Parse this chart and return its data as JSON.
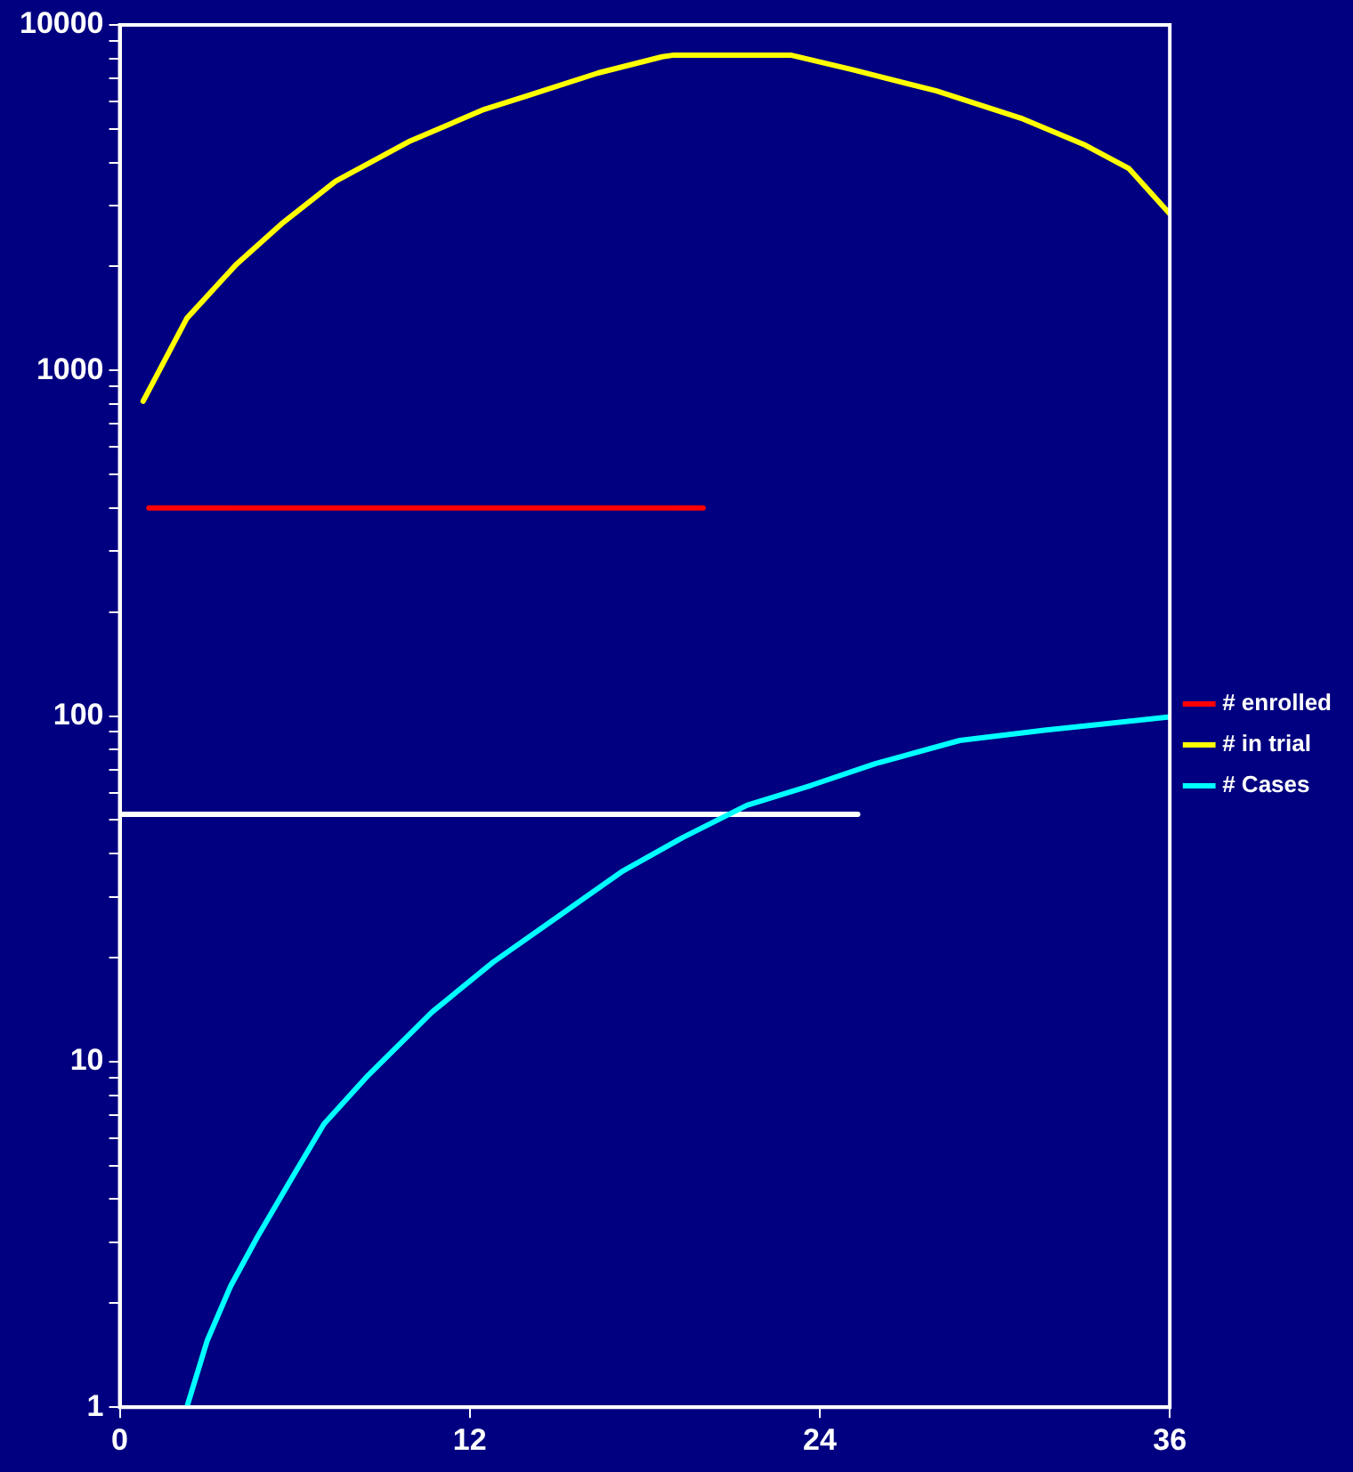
{
  "chart_data": {
    "type": "line",
    "log": "y",
    "legend": "right",
    "grid": false,
    "marker": "none",
    "line_style": "solid",
    "xlim": [
      0,
      36
    ],
    "xticks": [
      0,
      12,
      24,
      36
    ],
    "ylim": [
      1,
      10000
    ],
    "yticks": [
      1,
      {
        "value": 2,
        "label": null
      },
      {
        "value": 3,
        "label": null
      },
      {
        "value": 4,
        "label": null
      },
      {
        "value": 5,
        "label": null
      },
      {
        "value": 6,
        "label": null
      },
      {
        "value": 7,
        "label": null
      },
      {
        "value": 8,
        "label": null
      },
      {
        "value": 9,
        "label": null
      },
      10,
      {
        "value": 20,
        "label": null
      },
      {
        "value": 30,
        "label": null
      },
      {
        "value": 40,
        "label": null
      },
      {
        "value": 50,
        "label": null
      },
      {
        "value": 60,
        "label": null
      },
      {
        "value": 70,
        "label": null
      },
      {
        "value": 80,
        "label": null
      },
      {
        "value": 90,
        "label": null
      },
      100,
      {
        "value": 200,
        "label": null
      },
      {
        "value": 300,
        "label": null
      },
      {
        "value": 400,
        "label": null
      },
      {
        "value": 500,
        "label": null
      },
      {
        "value": 600,
        "label": null
      },
      {
        "value": 700,
        "label": null
      },
      {
        "value": 800,
        "label": null
      },
      {
        "value": 900,
        "label": null
      },
      1000,
      {
        "value": 2000,
        "label": null
      },
      {
        "value": 3000,
        "label": null
      },
      {
        "value": 4000,
        "label": null
      },
      {
        "value": 5000,
        "label": null
      },
      {
        "value": 6000,
        "label": null
      },
      {
        "value": 7000,
        "label": null
      },
      {
        "value": 8000,
        "label": null
      },
      {
        "value": 9000,
        "label": null
      },
      10000
    ],
    "series": [
      {
        "name": "# enrolled",
        "color": "#ff0000",
        "x": [
          1,
          20
        ],
        "values": [
          400,
          400
        ]
      },
      {
        "name": "# in trial",
        "color": "#ffff00",
        "x": [
          0.8,
          2.3,
          4,
          5.6,
          7.4,
          9.9,
          12.5,
          13.9,
          16.4,
          18.6,
          19,
          23,
          25.1,
          28,
          30.9,
          33.1,
          34.6,
          36
        ],
        "values": [
          815,
          1416,
          2030,
          2680,
          3530,
          4590,
          5700,
          6210,
          7260,
          8090,
          8180,
          8180,
          7430,
          6440,
          5370,
          4490,
          3840,
          2840
        ]
      },
      {
        "name": "# Cases",
        "color": "#00ffff",
        "x": [
          2.3,
          3,
          3.8,
          4.7,
          5.9,
          7,
          8.5,
          10.7,
          12.8,
          15,
          17.2,
          19.3,
          21.5,
          23.7,
          25.9,
          28.8,
          31.7,
          33.8,
          36
        ],
        "values": [
          1,
          1.56,
          2.24,
          3.09,
          4.6,
          6.6,
          9.1,
          13.9,
          19.4,
          26.2,
          35.4,
          44.5,
          55.2,
          63,
          72.8,
          85,
          91,
          95,
          99.5
        ]
      },
      {
        "color": "#ffffff",
        "x": [
          0,
          25.3
        ],
        "values": [
          52,
          52
        ]
      }
    ]
  }
}
